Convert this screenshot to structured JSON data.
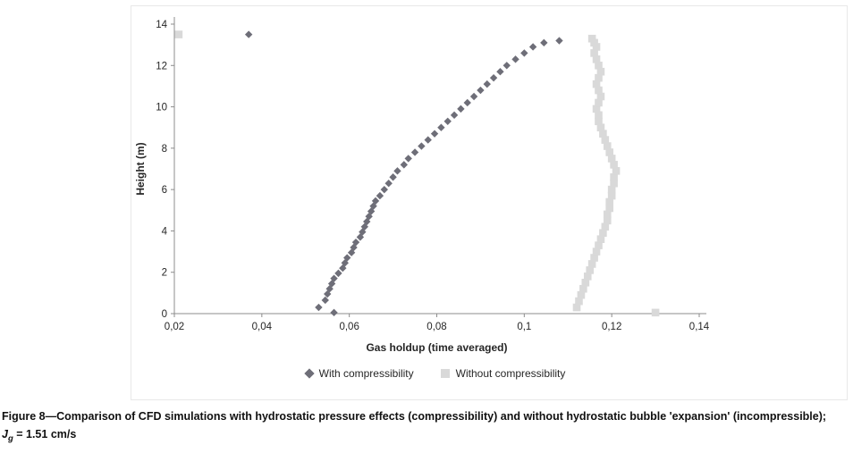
{
  "caption": {
    "line1": "Figure 8—Comparison of CFD simulations with hydrostatic pressure effects (compressibility) and without hydrostatic bubble 'expansion' (incompressible);",
    "j": "J",
    "sub": "g",
    "rest": " = 1.51 cm/s"
  },
  "chart_data": {
    "type": "scatter",
    "title": "",
    "xlabel": "Gas holdup (time averaged)",
    "ylabel": "Height (m)",
    "xlim": [
      0.02,
      0.14
    ],
    "ylim": [
      0,
      14
    ],
    "x_ticks": [
      0.02,
      0.04,
      0.06,
      0.08,
      0.1,
      0.12,
      0.14
    ],
    "x_tick_labels": [
      "0,02",
      "0,04",
      "0,06",
      "0,08",
      "0,1",
      "0,12",
      "0,14"
    ],
    "y_ticks": [
      0,
      2,
      4,
      6,
      8,
      10,
      12,
      14
    ],
    "grid": false,
    "legend_position": "bottom",
    "axis_color": "#8c8c8c",
    "text_color": "#262626",
    "series": [
      {
        "name": "With compressibility",
        "marker": "diamond",
        "color": "#6e6e78",
        "points": [
          [
            0.0565,
            0.05
          ],
          [
            0.053,
            0.3
          ],
          [
            0.0545,
            0.65
          ],
          [
            0.055,
            0.95
          ],
          [
            0.0555,
            1.2
          ],
          [
            0.056,
            1.45
          ],
          [
            0.0565,
            1.7
          ],
          [
            0.0575,
            1.95
          ],
          [
            0.0585,
            2.2
          ],
          [
            0.059,
            2.45
          ],
          [
            0.0595,
            2.7
          ],
          [
            0.0605,
            2.95
          ],
          [
            0.061,
            3.2
          ],
          [
            0.0615,
            3.45
          ],
          [
            0.0625,
            3.7
          ],
          [
            0.063,
            3.95
          ],
          [
            0.0635,
            4.2
          ],
          [
            0.064,
            4.45
          ],
          [
            0.0645,
            4.7
          ],
          [
            0.065,
            4.95
          ],
          [
            0.0655,
            5.2
          ],
          [
            0.066,
            5.45
          ],
          [
            0.067,
            5.7
          ],
          [
            0.068,
            6.0
          ],
          [
            0.069,
            6.3
          ],
          [
            0.07,
            6.6
          ],
          [
            0.071,
            6.9
          ],
          [
            0.0725,
            7.2
          ],
          [
            0.0735,
            7.5
          ],
          [
            0.075,
            7.8
          ],
          [
            0.0765,
            8.1
          ],
          [
            0.078,
            8.4
          ],
          [
            0.0795,
            8.7
          ],
          [
            0.081,
            9.0
          ],
          [
            0.0825,
            9.3
          ],
          [
            0.084,
            9.6
          ],
          [
            0.0855,
            9.9
          ],
          [
            0.087,
            10.2
          ],
          [
            0.0885,
            10.5
          ],
          [
            0.09,
            10.8
          ],
          [
            0.0915,
            11.1
          ],
          [
            0.093,
            11.4
          ],
          [
            0.0945,
            11.7
          ],
          [
            0.096,
            12.0
          ],
          [
            0.098,
            12.3
          ],
          [
            0.1,
            12.6
          ],
          [
            0.102,
            12.9
          ],
          [
            0.1045,
            13.1
          ],
          [
            0.108,
            13.2
          ],
          [
            0.037,
            13.5
          ]
        ]
      },
      {
        "name": "Without compressibility",
        "marker": "square",
        "color": "#d9d9d9",
        "points": [
          [
            0.13,
            0.05
          ],
          [
            0.112,
            0.3
          ],
          [
            0.1125,
            0.6
          ],
          [
            0.113,
            0.9
          ],
          [
            0.1135,
            1.2
          ],
          [
            0.114,
            1.5
          ],
          [
            0.1145,
            1.8
          ],
          [
            0.115,
            2.1
          ],
          [
            0.1155,
            2.4
          ],
          [
            0.116,
            2.7
          ],
          [
            0.1165,
            3.0
          ],
          [
            0.117,
            3.3
          ],
          [
            0.1175,
            3.6
          ],
          [
            0.118,
            3.9
          ],
          [
            0.1185,
            4.2
          ],
          [
            0.119,
            4.5
          ],
          [
            0.119,
            4.8
          ],
          [
            0.1195,
            5.1
          ],
          [
            0.1195,
            5.4
          ],
          [
            0.12,
            5.7
          ],
          [
            0.12,
            6.0
          ],
          [
            0.1205,
            6.3
          ],
          [
            0.1205,
            6.6
          ],
          [
            0.121,
            6.9
          ],
          [
            0.1205,
            7.2
          ],
          [
            0.12,
            7.5
          ],
          [
            0.1195,
            7.8
          ],
          [
            0.119,
            8.1
          ],
          [
            0.1185,
            8.4
          ],
          [
            0.118,
            8.7
          ],
          [
            0.1175,
            9.0
          ],
          [
            0.117,
            9.3
          ],
          [
            0.117,
            9.6
          ],
          [
            0.1165,
            9.9
          ],
          [
            0.117,
            10.2
          ],
          [
            0.1175,
            10.5
          ],
          [
            0.117,
            10.8
          ],
          [
            0.1165,
            11.1
          ],
          [
            0.117,
            11.4
          ],
          [
            0.1175,
            11.7
          ],
          [
            0.117,
            12.0
          ],
          [
            0.1165,
            12.3
          ],
          [
            0.116,
            12.6
          ],
          [
            0.1165,
            12.9
          ],
          [
            0.116,
            13.1
          ],
          [
            0.1155,
            13.3
          ],
          [
            0.021,
            13.5
          ]
        ]
      }
    ]
  }
}
